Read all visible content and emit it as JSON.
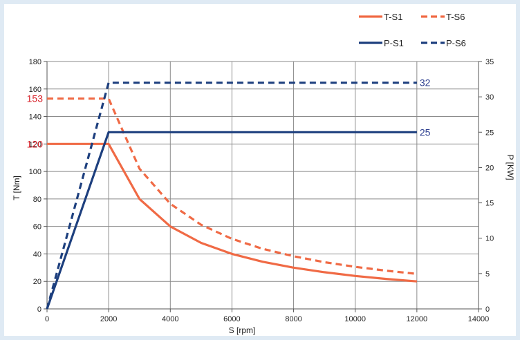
{
  "chart_data": {
    "type": "line",
    "title": "",
    "xlabel": "S [rpm]",
    "ylabel": "T [Nm]",
    "y2label": "P [KW]",
    "xlim": [
      0,
      14000
    ],
    "ylim": [
      0,
      180
    ],
    "y2lim": [
      0,
      35
    ],
    "x_ticks": [
      "0",
      "2000",
      "4000",
      "6000",
      "8000",
      "10000",
      "12000",
      "14000"
    ],
    "y_ticks": [
      "0",
      "20",
      "40",
      "60",
      "80",
      "100",
      "120",
      "140",
      "160",
      "180"
    ],
    "y2_ticks": [
      "0",
      "5",
      "10",
      "15",
      "20",
      "25",
      "30",
      "35"
    ],
    "grid": true,
    "legend_position": "top-right",
    "series": [
      {
        "name": "T-S1",
        "axis": "left",
        "style": "solid",
        "color": "#f06a45",
        "x": [
          0,
          2000,
          3000,
          4000,
          5000,
          6000,
          7000,
          8000,
          9000,
          10000,
          11000,
          12000
        ],
        "values": [
          120,
          120,
          80,
          60,
          48,
          40,
          34.3,
          30,
          26.7,
          24,
          21.8,
          20
        ]
      },
      {
        "name": "T-S6",
        "axis": "left",
        "style": "dashed",
        "color": "#f06a45",
        "x": [
          0,
          2000,
          3000,
          4000,
          5000,
          6000,
          7000,
          8000,
          9000,
          10000,
          11000,
          12000
        ],
        "values": [
          153,
          153,
          102,
          76.5,
          61.2,
          51,
          43.7,
          38.3,
          34,
          30.6,
          27.8,
          25.5
        ]
      },
      {
        "name": "P-S1",
        "axis": "right",
        "style": "solid",
        "color": "#1d3f7e",
        "x": [
          0,
          2000,
          12000
        ],
        "values": [
          0,
          25,
          25
        ]
      },
      {
        "name": "P-S6",
        "axis": "right",
        "style": "dashed",
        "color": "#1d3f7e",
        "x": [
          0,
          2000,
          12000
        ],
        "values": [
          0,
          32,
          32
        ]
      }
    ],
    "annotations": [
      {
        "text": "153",
        "position": "left-axis",
        "value": 153,
        "color": "#d8222a"
      },
      {
        "text": "120",
        "position": "left-axis",
        "value": 120,
        "color": "#d8222a"
      },
      {
        "text": "32",
        "position": "line-end",
        "x": 12000,
        "value": 32,
        "axis": "right",
        "color": "#2c3e8f"
      },
      {
        "text": "25",
        "position": "line-end",
        "x": 12000,
        "value": 25,
        "axis": "right",
        "color": "#2c3e8f"
      }
    ]
  }
}
